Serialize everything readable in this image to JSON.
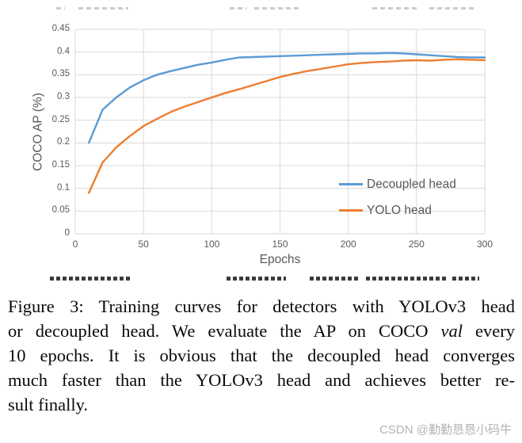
{
  "chart_data": {
    "type": "line",
    "title": "",
    "xlabel": "Epochs",
    "ylabel": "COCO AP (%)",
    "xlim": [
      0,
      300
    ],
    "ylim": [
      0,
      0.45
    ],
    "xticks": [
      "0",
      "50",
      "100",
      "150",
      "200",
      "250",
      "300"
    ],
    "yticks": [
      "0",
      "0.05",
      "0.1",
      "0.15",
      "0.2",
      "0.25",
      "0.3",
      "0.35",
      "0.4",
      "0.45"
    ],
    "grid": true,
    "legend_position": "inside-right",
    "grid_color": "#d9d9d9",
    "axis_text_color": "#595959",
    "x": [
      10,
      20,
      30,
      40,
      50,
      60,
      70,
      80,
      90,
      100,
      110,
      120,
      130,
      140,
      150,
      160,
      170,
      180,
      190,
      200,
      210,
      220,
      230,
      240,
      250,
      260,
      270,
      280,
      290,
      300
    ],
    "series": [
      {
        "name": "Decoupled head",
        "color": "#5B9BD5",
        "values": [
          0.2,
          0.273,
          0.3,
          0.322,
          0.338,
          0.35,
          0.358,
          0.365,
          0.372,
          0.377,
          0.383,
          0.388,
          0.389,
          0.39,
          0.391,
          0.392,
          0.393,
          0.394,
          0.395,
          0.396,
          0.397,
          0.397,
          0.398,
          0.397,
          0.395,
          0.393,
          0.391,
          0.389,
          0.388,
          0.388
        ]
      },
      {
        "name": "YOLO head",
        "color": "#ED7D31",
        "values": [
          0.09,
          0.157,
          0.19,
          0.215,
          0.237,
          0.253,
          0.268,
          0.28,
          0.29,
          0.3,
          0.31,
          0.318,
          0.327,
          0.336,
          0.345,
          0.352,
          0.358,
          0.363,
          0.368,
          0.373,
          0.376,
          0.378,
          0.379,
          0.381,
          0.382,
          0.381,
          0.383,
          0.384,
          0.383,
          0.382
        ]
      }
    ]
  },
  "caption": {
    "line1": "Figure 3: Training curves for detectors with YOLOv3 head",
    "line2_pre": "or decoupled head. We evaluate the AP on COCO ",
    "line2_italic": "val",
    "line2_post": " every",
    "line3": "10 epochs. It is obvious that the decoupled head converges",
    "line4": "much faster than the YOLOv3 head and achieves better re-",
    "line5": "sult finally."
  },
  "watermark": {
    "text": "CSDN @勤勤恳恳小码牛"
  }
}
